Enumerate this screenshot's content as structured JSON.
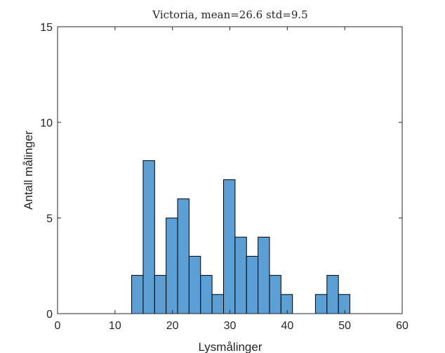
{
  "chart_data": {
    "type": "bar",
    "title": "Victoria, mean=26.6 std=9.5",
    "xlabel": "Lysmålinger",
    "ylabel": "Antall målinger",
    "xlim": [
      0,
      60
    ],
    "ylim": [
      0,
      15
    ],
    "xticks": [
      "0",
      "10",
      "20",
      "30",
      "40",
      "50",
      "60"
    ],
    "yticks": [
      "0",
      "5",
      "10",
      "15"
    ],
    "grid": false,
    "bar_color": "#5b9fd5",
    "bin_width": 2.0,
    "bins": [
      {
        "left": 12.9,
        "count": 2
      },
      {
        "left": 14.9,
        "count": 8
      },
      {
        "left": 16.9,
        "count": 2
      },
      {
        "left": 18.9,
        "count": 5
      },
      {
        "left": 20.9,
        "count": 6
      },
      {
        "left": 22.9,
        "count": 3
      },
      {
        "left": 24.9,
        "count": 2
      },
      {
        "left": 26.9,
        "count": 1
      },
      {
        "left": 28.9,
        "count": 7
      },
      {
        "left": 30.9,
        "count": 4
      },
      {
        "left": 32.9,
        "count": 3
      },
      {
        "left": 34.9,
        "count": 4
      },
      {
        "left": 36.9,
        "count": 2
      },
      {
        "left": 38.9,
        "count": 1
      },
      {
        "left": 40.9,
        "count": 0
      },
      {
        "left": 42.9,
        "count": 0
      },
      {
        "left": 44.9,
        "count": 1
      },
      {
        "left": 46.9,
        "count": 2
      },
      {
        "left": 48.9,
        "count": 1
      }
    ]
  }
}
